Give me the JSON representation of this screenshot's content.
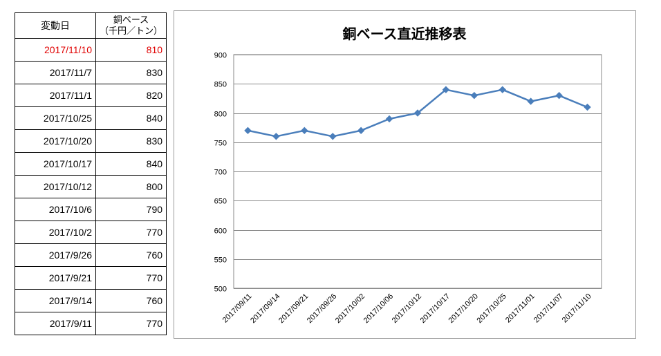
{
  "table": {
    "header": {
      "date": "変動日",
      "price_line1": "銅ベース",
      "price_line2": "（千円／トン）"
    },
    "rows": [
      {
        "date": "2017/11/10",
        "price": "810",
        "highlight": true
      },
      {
        "date": "2017/11/7",
        "price": "830"
      },
      {
        "date": "2017/11/1",
        "price": "820"
      },
      {
        "date": "2017/10/25",
        "price": "840"
      },
      {
        "date": "2017/10/20",
        "price": "830"
      },
      {
        "date": "2017/10/17",
        "price": "840"
      },
      {
        "date": "2017/10/12",
        "price": "800"
      },
      {
        "date": "2017/10/6",
        "price": "790"
      },
      {
        "date": "2017/10/2",
        "price": "770"
      },
      {
        "date": "2017/9/26",
        "price": "760"
      },
      {
        "date": "2017/9/21",
        "price": "770"
      },
      {
        "date": "2017/9/14",
        "price": "760"
      },
      {
        "date": "2017/9/11",
        "price": "770"
      }
    ],
    "highlight_color": "#e00000"
  },
  "chart_data": {
    "type": "line",
    "title": "銅ベース直近推移表",
    "xlabel": "",
    "ylabel": "",
    "categories": [
      "2017/09/11",
      "2017/09/14",
      "2017/09/21",
      "2017/09/26",
      "2017/10/02",
      "2017/10/06",
      "2017/10/12",
      "2017/10/17",
      "2017/10/20",
      "2017/10/25",
      "2017/11/01",
      "2017/11/07",
      "2017/11/10"
    ],
    "series": [
      {
        "values": [
          770,
          760,
          770,
          760,
          770,
          790,
          800,
          840,
          830,
          840,
          820,
          830,
          810
        ],
        "color": "#4a7ebb",
        "marker": "diamond"
      }
    ],
    "ylim": [
      500,
      900
    ],
    "yticks": [
      500,
      550,
      600,
      650,
      700,
      750,
      800,
      850,
      900
    ],
    "grid": true,
    "legend": "none"
  }
}
